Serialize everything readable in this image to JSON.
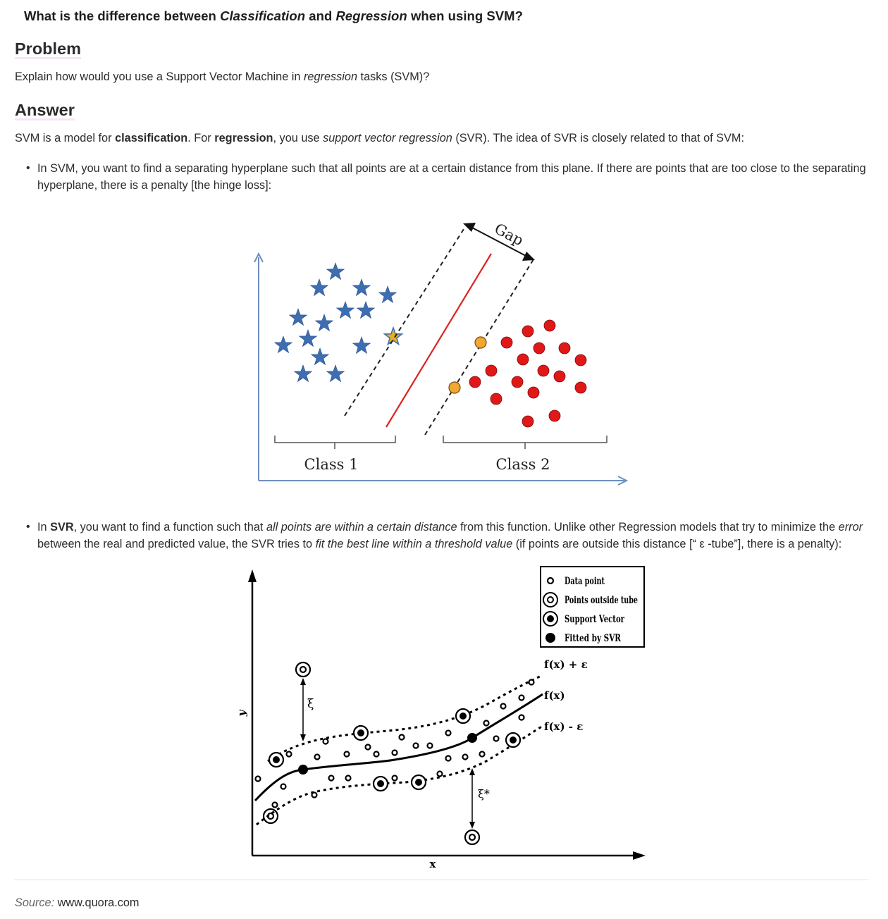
{
  "title": {
    "prefix": "What is the difference between ",
    "term1": "Classification",
    "mid": " and ",
    "term2": "Regression",
    "suffix": " when using SVM?"
  },
  "problem": {
    "heading": "Problem",
    "text_before": "Explain how would you use a Support Vector Machine in ",
    "text_em": "regression",
    "text_after": " tasks (SVM)?"
  },
  "answer": {
    "heading": "Answer",
    "intro_1": "SVM is a model for ",
    "intro_b1": "classification",
    "intro_2": ". For ",
    "intro_b2": "regression",
    "intro_3": ", you use ",
    "intro_em": "support vector regression",
    "intro_4": " (SVR). The idea of SVR is closely related to that of SVM:",
    "bullet1": "In SVM, you want to find a separating hyperplane such that all points are at a certain distance from this plane. If there are points that are too close to the separating hyperplane, there is a penalty [the hinge loss]:",
    "bullet2_1": "In ",
    "bullet2_b": "SVR",
    "bullet2_2": ", you want to find a function such that ",
    "bullet2_em1": "all points are within a certain distance",
    "bullet2_3": " from this function. Unlike other Regression models that try to minimize the ",
    "bullet2_em2": "error",
    "bullet2_4": " between the real and predicted value, the SVR tries to ",
    "bullet2_em3": "fit the best line within a threshold value",
    "bullet2_5": " (if points are outside this distance [“ ε -tube”], there is a penalty):"
  },
  "svm_figure": {
    "gap_label": "Gap",
    "class1_label": "Class 1",
    "class2_label": "Class 2",
    "colors": {
      "axis": "#6f8fc0",
      "star": "#3e6eb2",
      "support_star": "#e8b020",
      "hyperplane": "#dd2222",
      "dot": "#e01818",
      "support_dot": "#f0a830"
    }
  },
  "svr_figure": {
    "legend": {
      "data_point": "Data point",
      "outside_tube": "Points outside tube",
      "support_vector": "Support Vector",
      "fitted": "Fitted by SVR"
    },
    "upper_label": "f(x) + ε",
    "middle_label": "f(x)",
    "lower_label": "f(x) - ε",
    "xi_label": "ξ",
    "xi_star_label": "ξ*",
    "x_axis": "x",
    "y_axis": "y"
  },
  "source": {
    "label": "Source:",
    "url": "www.quora.com"
  }
}
